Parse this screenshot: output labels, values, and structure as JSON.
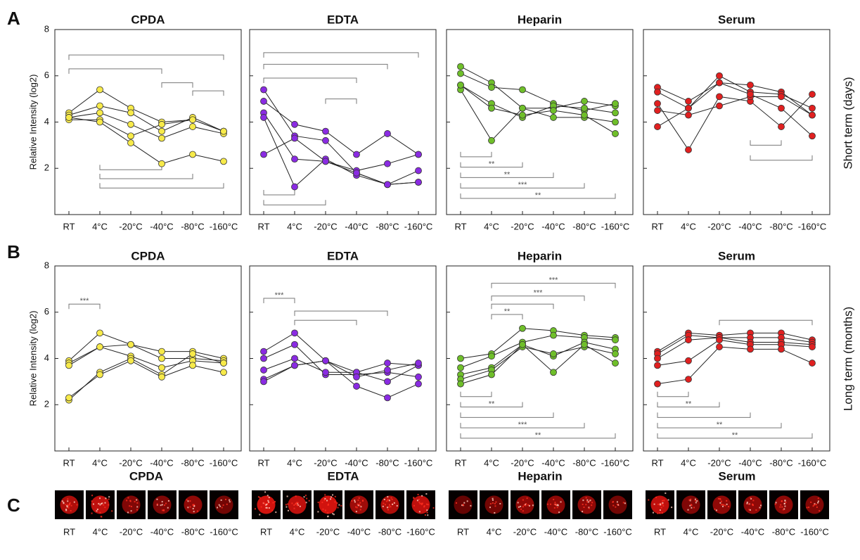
{
  "letters": [
    "A",
    "B",
    "C"
  ],
  "row_labels": [
    "Short term (days)",
    "Long term (months)"
  ],
  "chart_data": [
    {
      "type": "line",
      "title": "CPDA",
      "y_label": "Relative Intensity (log2)",
      "categories": [
        "RT",
        "4°C",
        "-20°C",
        "-40°C",
        "-80°C",
        "-160°C"
      ],
      "ylim": [
        0,
        8
      ],
      "yticks": [
        2,
        4,
        6,
        8
      ],
      "series": [
        {
          "color": "#f7ea4a",
          "values": [
            4.4,
            5.4,
            4.6,
            4.0,
            4.1,
            3.6
          ]
        },
        {
          "color": "#f7ea4a",
          "values": [
            4.3,
            4.7,
            4.4,
            3.6,
            4.2,
            3.6
          ]
        },
        {
          "color": "#f7ea4a",
          "values": [
            4.2,
            4.4,
            3.9,
            3.3,
            3.8,
            3.5
          ]
        },
        {
          "color": "#f7ea4a",
          "values": [
            4.1,
            4.1,
            3.4,
            3.9,
            4.1,
            3.6
          ]
        },
        {
          "color": "#f7ea4a",
          "values": [
            4.2,
            4.0,
            3.1,
            2.2,
            2.6,
            2.3
          ]
        }
      ],
      "brackets": [
        {
          "from": 0,
          "to": 5,
          "level": 6.9
        },
        {
          "from": 0,
          "to": 3,
          "level": 6.3
        },
        {
          "from": 3,
          "to": 4,
          "level": 5.7
        },
        {
          "from": 4,
          "to": 5,
          "level": 5.35
        },
        {
          "from": 1,
          "to": 3,
          "level": 1.94
        },
        {
          "from": 1,
          "to": 4,
          "level": 1.55
        },
        {
          "from": 1,
          "to": 5,
          "level": 1.15
        }
      ]
    },
    {
      "type": "line",
      "title": "EDTA",
      "categories": [
        "RT",
        "4°C",
        "-20°C",
        "-40°C",
        "-80°C",
        "-160°C"
      ],
      "ylim": [
        0,
        8
      ],
      "yticks": [
        2,
        4,
        6,
        8
      ],
      "series": [
        {
          "color": "#8a2be2",
          "values": [
            5.4,
            3.4,
            3.2,
            1.8,
            1.3,
            1.4
          ]
        },
        {
          "color": "#8a2be2",
          "values": [
            4.9,
            3.9,
            3.6,
            2.6,
            3.5,
            2.6
          ]
        },
        {
          "color": "#8a2be2",
          "values": [
            4.4,
            2.4,
            2.3,
            1.9,
            2.2,
            2.6
          ]
        },
        {
          "color": "#8a2be2",
          "values": [
            4.2,
            1.2,
            2.4,
            1.7,
            1.3,
            1.9
          ]
        },
        {
          "color": "#8a2be2",
          "values": [
            2.6,
            3.3,
            2.3,
            1.8,
            1.3,
            1.4
          ]
        }
      ],
      "brackets": [
        {
          "from": 0,
          "to": 5,
          "level": 7.0
        },
        {
          "from": 0,
          "to": 4,
          "level": 6.5
        },
        {
          "from": 0,
          "to": 3,
          "level": 5.9
        },
        {
          "from": 2,
          "to": 3,
          "level": 5.0
        },
        {
          "from": 0,
          "to": 1,
          "level": 0.85
        },
        {
          "from": 0,
          "to": 2,
          "level": 0.42
        }
      ]
    },
    {
      "type": "line",
      "title": "Heparin",
      "categories": [
        "RT",
        "4°C",
        "-20°C",
        "-40°C",
        "-80°C",
        "-160°C"
      ],
      "ylim": [
        0,
        8
      ],
      "yticks": [
        2,
        4,
        6,
        8
      ],
      "series": [
        {
          "color": "#6fbf2a",
          "values": [
            6.4,
            5.7,
            4.6,
            4.6,
            4.9,
            4.7
          ]
        },
        {
          "color": "#6fbf2a",
          "values": [
            6.1,
            5.5,
            5.4,
            4.8,
            4.5,
            4.8
          ]
        },
        {
          "color": "#6fbf2a",
          "values": [
            5.6,
            4.8,
            4.2,
            4.7,
            4.6,
            4.4
          ]
        },
        {
          "color": "#6fbf2a",
          "values": [
            5.4,
            3.2,
            4.6,
            4.2,
            4.2,
            4.0
          ]
        },
        {
          "color": "#6fbf2a",
          "values": [
            5.6,
            4.6,
            4.3,
            4.5,
            4.3,
            3.5
          ]
        }
      ],
      "brackets": [
        {
          "from": 0,
          "to": 1,
          "level": 2.5
        },
        {
          "from": 0,
          "to": 2,
          "level": 2.05,
          "label": "**"
        },
        {
          "from": 0,
          "to": 3,
          "level": 1.6,
          "label": "**"
        },
        {
          "from": 0,
          "to": 4,
          "level": 1.15,
          "label": "***"
        },
        {
          "from": 0,
          "to": 5,
          "level": 0.7,
          "label": "**"
        }
      ]
    },
    {
      "type": "line",
      "title": "Serum",
      "categories": [
        "RT",
        "4°C",
        "-20°C",
        "-40°C",
        "-80°C",
        "-160°C"
      ],
      "ylim": [
        0,
        8
      ],
      "yticks": [
        2,
        4,
        6,
        8
      ],
      "series": [
        {
          "color": "#e02020",
          "values": [
            5.5,
            4.9,
            5.7,
            5.6,
            5.3,
            4.3
          ]
        },
        {
          "color": "#e02020",
          "values": [
            5.3,
            4.6,
            6.0,
            5.3,
            5.2,
            4.6
          ]
        },
        {
          "color": "#e02020",
          "values": [
            4.8,
            2.8,
            5.1,
            4.9,
            3.8,
            5.2
          ]
        },
        {
          "color": "#e02020",
          "values": [
            4.5,
            4.3,
            4.7,
            5.1,
            5.1,
            4.3
          ]
        },
        {
          "color": "#e02020",
          "values": [
            3.8,
            4.6,
            5.7,
            5.2,
            4.6,
            3.4
          ]
        }
      ],
      "brackets": [
        {
          "from": 3,
          "to": 4,
          "level": 3.0
        },
        {
          "from": 3,
          "to": 5,
          "level": 2.35
        }
      ]
    },
    {
      "type": "line",
      "title": "CPDA",
      "y_label": "Relative Intensity (log2)",
      "categories": [
        "RT",
        "4°C",
        "-20°C",
        "-40°C",
        "-80°C",
        "-160°C"
      ],
      "ylim": [
        0,
        8
      ],
      "yticks": [
        2,
        4,
        6,
        8
      ],
      "series": [
        {
          "color": "#f7ea4a",
          "values": [
            3.9,
            5.1,
            4.6,
            4.3,
            4.3,
            4.0
          ]
        },
        {
          "color": "#f7ea4a",
          "values": [
            3.8,
            4.5,
            4.6,
            4.0,
            4.0,
            3.9
          ]
        },
        {
          "color": "#f7ea4a",
          "values": [
            3.7,
            4.5,
            4.1,
            3.6,
            3.9,
            3.8
          ]
        },
        {
          "color": "#f7ea4a",
          "values": [
            2.2,
            3.4,
            4.0,
            3.3,
            4.2,
            3.8
          ]
        },
        {
          "color": "#f7ea4a",
          "values": [
            2.3,
            3.3,
            3.9,
            3.2,
            3.7,
            3.4
          ]
        }
      ],
      "brackets": [
        {
          "from": 0,
          "to": 1,
          "level": 6.35,
          "label": "***"
        }
      ]
    },
    {
      "type": "line",
      "title": "EDTA",
      "categories": [
        "RT",
        "4°C",
        "-20°C",
        "-40°C",
        "-80°C",
        "-160°C"
      ],
      "ylim": [
        0,
        8
      ],
      "yticks": [
        2,
        4,
        6,
        8
      ],
      "series": [
        {
          "color": "#8a2be2",
          "values": [
            4.3,
            5.1,
            3.9,
            3.4,
            3.8,
            3.7
          ]
        },
        {
          "color": "#8a2be2",
          "values": [
            4.0,
            4.6,
            3.3,
            3.3,
            3.4,
            3.2
          ]
        },
        {
          "color": "#8a2be2",
          "values": [
            3.5,
            4.0,
            3.4,
            3.4,
            3.0,
            3.7
          ]
        },
        {
          "color": "#8a2be2",
          "values": [
            3.1,
            3.7,
            3.9,
            3.2,
            3.5,
            3.8
          ]
        },
        {
          "color": "#8a2be2",
          "values": [
            3.0,
            3.7,
            3.9,
            2.8,
            2.3,
            2.9
          ]
        }
      ],
      "brackets": [
        {
          "from": 0,
          "to": 1,
          "level": 6.6,
          "label": "***"
        },
        {
          "from": 1,
          "to": 4,
          "level": 6.05
        },
        {
          "from": 1,
          "to": 3,
          "level": 5.65
        }
      ]
    },
    {
      "type": "line",
      "title": "Heparin",
      "categories": [
        "RT",
        "4°C",
        "-20°C",
        "-40°C",
        "-80°C",
        "-160°C"
      ],
      "ylim": [
        0,
        8
      ],
      "yticks": [
        2,
        4,
        6,
        8
      ],
      "series": [
        {
          "color": "#6fbf2a",
          "values": [
            4.0,
            4.2,
            5.3,
            5.2,
            5.0,
            4.9
          ]
        },
        {
          "color": "#6fbf2a",
          "values": [
            3.6,
            4.1,
            4.7,
            5.0,
            4.9,
            4.8
          ]
        },
        {
          "color": "#6fbf2a",
          "values": [
            3.3,
            3.6,
            4.6,
            4.1,
            4.7,
            4.4
          ]
        },
        {
          "color": "#6fbf2a",
          "values": [
            3.1,
            3.5,
            4.5,
            4.2,
            4.5,
            4.2
          ]
        },
        {
          "color": "#6fbf2a",
          "values": [
            2.9,
            3.3,
            4.6,
            3.4,
            4.6,
            3.8
          ]
        }
      ],
      "brackets": [
        {
          "from": 1,
          "to": 5,
          "level": 7.25,
          "label": "***"
        },
        {
          "from": 1,
          "to": 4,
          "level": 6.7,
          "label": "***"
        },
        {
          "from": 1,
          "to": 3,
          "level": 6.35
        },
        {
          "from": 1,
          "to": 2,
          "level": 5.9,
          "label": "**"
        },
        {
          "from": 0,
          "to": 1,
          "level": 2.35
        },
        {
          "from": 0,
          "to": 2,
          "level": 1.9,
          "label": "**"
        },
        {
          "from": 0,
          "to": 3,
          "level": 1.45
        },
        {
          "from": 0,
          "to": 4,
          "level": 1.0,
          "label": "***"
        },
        {
          "from": 0,
          "to": 5,
          "level": 0.55,
          "label": "**"
        }
      ]
    },
    {
      "type": "line",
      "title": "Serum",
      "categories": [
        "RT",
        "4°C",
        "-20°C",
        "-40°C",
        "-80°C",
        "-160°C"
      ],
      "ylim": [
        0,
        8
      ],
      "yticks": [
        2,
        4,
        6,
        8
      ],
      "series": [
        {
          "color": "#e02020",
          "values": [
            4.3,
            5.1,
            5.0,
            5.1,
            5.1,
            4.8
          ]
        },
        {
          "color": "#e02020",
          "values": [
            4.2,
            5.0,
            4.9,
            4.9,
            4.9,
            4.7
          ]
        },
        {
          "color": "#e02020",
          "values": [
            4.0,
            4.8,
            4.9,
            4.7,
            4.7,
            4.6
          ]
        },
        {
          "color": "#e02020",
          "values": [
            3.7,
            3.9,
            4.8,
            4.6,
            4.6,
            4.5
          ]
        },
        {
          "color": "#e02020",
          "values": [
            2.9,
            3.1,
            4.5,
            4.4,
            4.4,
            3.8
          ]
        }
      ],
      "brackets": [
        {
          "from": 2,
          "to": 5,
          "level": 5.65
        },
        {
          "from": 0,
          "to": 1,
          "level": 2.35
        },
        {
          "from": 0,
          "to": 2,
          "level": 1.9,
          "label": "**"
        },
        {
          "from": 0,
          "to": 3,
          "level": 1.45
        },
        {
          "from": 0,
          "to": 4,
          "level": 1.0,
          "label": "**"
        },
        {
          "from": 0,
          "to": 5,
          "level": 0.55,
          "label": "**"
        }
      ]
    }
  ],
  "arrays": [
    {
      "title": "CPDA",
      "labels": [
        "RT",
        "4°C",
        "-20°C",
        "-40°C",
        "-80°C",
        "-160°C"
      ]
    },
    {
      "title": "EDTA",
      "labels": [
        "RT",
        "4°C",
        "-20°C",
        "-40°C",
        "-80°C",
        "-160°C"
      ]
    },
    {
      "title": "Heparin",
      "labels": [
        "RT",
        "4°C",
        "-20°C",
        "-40°C",
        "-80°C",
        "-160°C"
      ]
    },
    {
      "title": "Serum",
      "labels": [
        "RT",
        "4°C",
        "-20°C",
        "-40°C",
        "-80°C",
        "-160°C"
      ]
    }
  ]
}
